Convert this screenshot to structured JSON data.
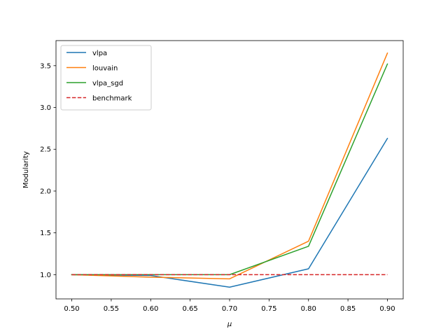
{
  "chart_data": {
    "type": "line",
    "title": "",
    "xlabel": "μ",
    "ylabel": "Modularity",
    "x": [
      0.5,
      0.6,
      0.7,
      0.8,
      0.9
    ],
    "xlim": [
      0.48,
      0.92
    ],
    "ylim": [
      0.71,
      3.8
    ],
    "xticks": [
      0.5,
      0.55,
      0.6,
      0.65,
      0.7,
      0.75,
      0.8,
      0.85,
      0.9
    ],
    "xtick_labels": [
      "0.50",
      "0.55",
      "0.60",
      "0.65",
      "0.70",
      "0.75",
      "0.80",
      "0.85",
      "0.90"
    ],
    "yticks": [
      1.0,
      1.5,
      2.0,
      2.5,
      3.0,
      3.5
    ],
    "ytick_labels": [
      "1.0",
      "1.5",
      "2.0",
      "2.5",
      "3.0",
      "3.5"
    ],
    "grid": false,
    "legend_position": "top-left",
    "series": [
      {
        "name": "vlpa",
        "color": "#1f77b4",
        "dash": "solid",
        "values": [
          1.0,
          0.99,
          0.85,
          1.07,
          2.63
        ]
      },
      {
        "name": "louvain",
        "color": "#ff7f0e",
        "dash": "solid",
        "values": [
          1.0,
          0.97,
          0.95,
          1.4,
          3.65
        ]
      },
      {
        "name": "vlpa_sgd",
        "color": "#2ca02c",
        "dash": "solid",
        "values": [
          1.0,
          1.0,
          1.0,
          1.34,
          3.52
        ]
      },
      {
        "name": "benchmark",
        "color": "#d62728",
        "dash": "dashed",
        "values": [
          1.0,
          1.0,
          1.0,
          1.0,
          1.0
        ]
      }
    ]
  }
}
